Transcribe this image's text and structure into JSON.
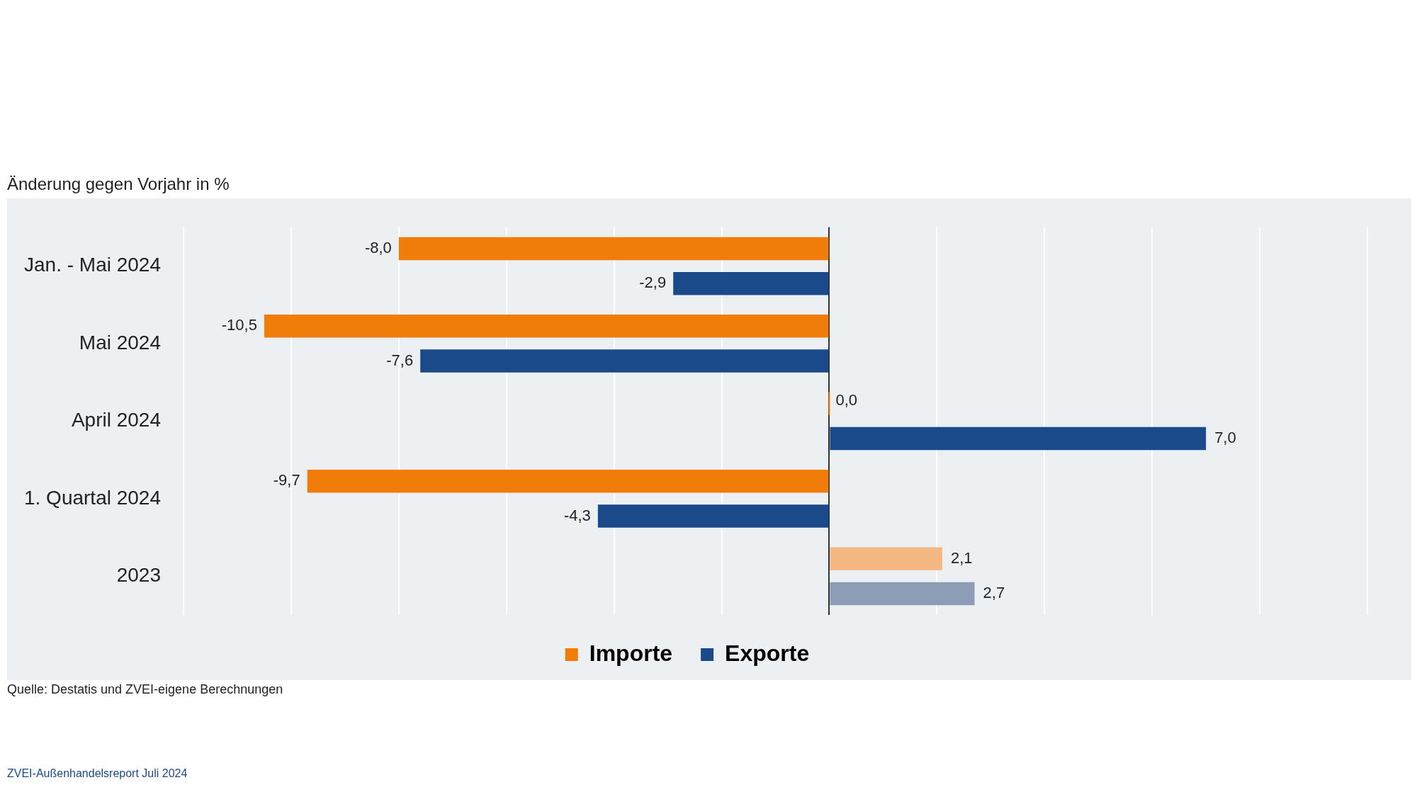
{
  "chart_data": {
    "type": "bar",
    "orientation": "horizontal",
    "title": "Änderung gegen Vorjahr in %",
    "categories": [
      "Jan. - Mai 2024",
      "Mai 2024",
      "April 2024",
      "1. Quartal 2024",
      "2023"
    ],
    "series": [
      {
        "name": "Importe",
        "color": "#f07d0a",
        "colors": [
          "#f07d0a",
          "#f07d0a",
          "#f07d0a",
          "#f07d0a",
          "#f5b883"
        ],
        "values": [
          -8.0,
          -10.5,
          0.0,
          -9.7,
          2.1
        ],
        "value_labels": [
          "-8,0",
          "-10,5",
          "0,0",
          "-9,7",
          "2,1"
        ]
      },
      {
        "name": "Exporte",
        "color": "#1b4a8a",
        "colors": [
          "#1b4a8a",
          "#1b4a8a",
          "#1b4a8a",
          "#1b4a8a",
          "#8d9db5"
        ],
        "values": [
          -2.9,
          -7.6,
          7.0,
          -4.3,
          2.7
        ],
        "value_labels": [
          "-2,9",
          "-7,6",
          "7,0",
          "-4,3",
          "2,7"
        ]
      }
    ],
    "xlim": [
      -12,
      10
    ],
    "xticks": [
      {
        "value": -12,
        "label": null
      },
      {
        "value": -10,
        "label": null
      },
      {
        "value": -8,
        "label": null
      },
      {
        "value": -6,
        "label": null
      },
      {
        "value": -4,
        "label": null
      },
      {
        "value": -2,
        "label": null
      },
      {
        "value": 0,
        "label": null
      },
      {
        "value": 2,
        "label": null
      },
      {
        "value": 4,
        "label": null
      },
      {
        "value": 6,
        "label": null
      },
      {
        "value": 8,
        "label": null
      },
      {
        "value": 10,
        "label": null
      }
    ],
    "tick_labels": "y",
    "grid": "x",
    "legend": "bottom",
    "annotations": [
      "Quelle: Destatis und ZVEI-eigene Berechnungen",
      "ZVEI-Außenhandelsreport Juli 2024"
    ]
  }
}
